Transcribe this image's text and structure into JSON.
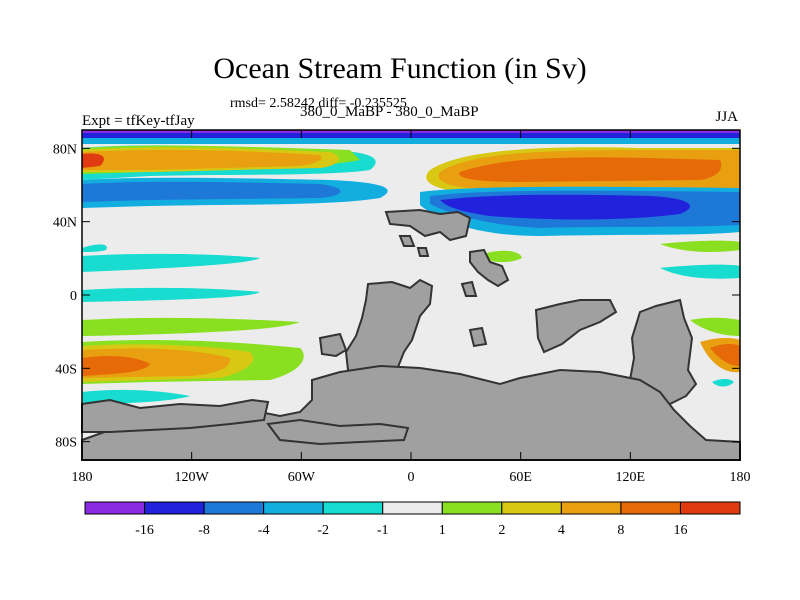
{
  "chart_data": {
    "type": "heatmap",
    "title": "Ocean Stream Function (in Sv)",
    "stats_text": "rmsd= 2.58242 diff= -0.235525",
    "left_label": "Expt = tfKey-tfJay",
    "center_label": "380_0_MaBP - 380_0_MaBP",
    "right_label": "JJA",
    "x_ticks": [
      "180",
      "120W",
      "60W",
      "0",
      "60E",
      "120E",
      "180"
    ],
    "x_tick_values": [
      -180,
      -120,
      -60,
      0,
      60,
      120,
      180
    ],
    "y_ticks": [
      "80N",
      "40N",
      "0",
      "40S",
      "80S"
    ],
    "y_tick_values": [
      80,
      40,
      0,
      -40,
      -80
    ],
    "xlim": [
      -180,
      180
    ],
    "ylim": [
      -90,
      90
    ],
    "colorbar": {
      "labels": [
        "-16",
        "-8",
        "-4",
        "-2",
        "-1",
        "1",
        "2",
        "4",
        "8",
        "16"
      ],
      "colors": [
        "#8a2be2",
        "#2222dd",
        "#1e78d8",
        "#12aee0",
        "#18dcd0",
        "#ececec",
        "#8ae020",
        "#d8c814",
        "#e8a010",
        "#e66a08",
        "#e03a10"
      ]
    },
    "colors": {
      "land": "#a0a0a0",
      "background": "#ececec"
    }
  }
}
